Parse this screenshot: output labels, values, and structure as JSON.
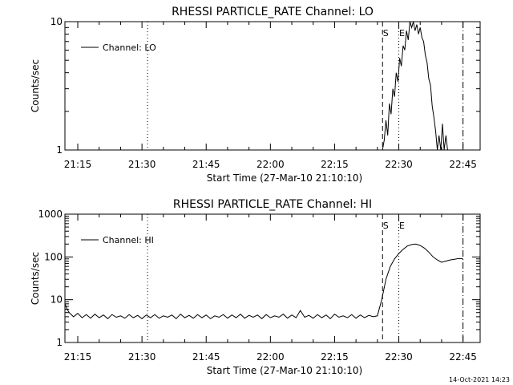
{
  "footer": {
    "timestamp": "14-Oct-2021 14:23"
  },
  "chart_data": [
    {
      "type": "line",
      "title": "RHESSI PARTICLE_RATE Channel: LO",
      "xlabel": "Start Time (27-Mar-10 21:10:10)",
      "ylabel": "Counts/sec",
      "y_scale": "log",
      "ylim": [
        1,
        10
      ],
      "xlim_minutes_after_2110": [
        2,
        51.5
      ],
      "y_ticks": [
        {
          "v": 1,
          "label": "1"
        },
        {
          "v": 10,
          "label": "10"
        }
      ],
      "x_ticks": [
        {
          "m": 5,
          "label": "21:15"
        },
        {
          "m": 20,
          "label": "21:30"
        },
        {
          "m": 35,
          "label": "21:45"
        },
        {
          "m": 50,
          "label": "22:00"
        },
        {
          "m": 65,
          "label": "22:15"
        },
        {
          "m": 80,
          "label": "22:30"
        },
        {
          "m": 95,
          "label": "22:45"
        }
      ],
      "legend": {
        "label": "Channel: LO",
        "position": "top-left"
      },
      "markers": [
        {
          "type": "dotted",
          "m": 21.3,
          "label": ""
        },
        {
          "type": "dashed",
          "m": 76.2,
          "label": "S"
        },
        {
          "type": "dotted",
          "m": 80.0,
          "label": "E"
        },
        {
          "type": "dashdot",
          "m": 95.0,
          "label": ""
        }
      ],
      "series": [
        {
          "name": "Channel: LO",
          "x": [
            76.2,
            76.6,
            77.0,
            77.4,
            77.8,
            78.2,
            78.6,
            79.0,
            79.4,
            79.8,
            80.2,
            80.6,
            81.0,
            81.4,
            81.8,
            82.2,
            82.6,
            83.0,
            83.4,
            83.8,
            84.2,
            84.6,
            85.0,
            85.4,
            85.8,
            86.2,
            86.6,
            87.0,
            87.4,
            87.8,
            88.2,
            88.6,
            89.0,
            89.4,
            89.8,
            90.2,
            90.6,
            91.0,
            91.4
          ],
          "y": [
            1.0,
            1.2,
            1.7,
            1.3,
            2.3,
            1.9,
            3.0,
            2.6,
            4.0,
            3.4,
            5.2,
            4.5,
            6.5,
            6.0,
            8.5,
            7.2,
            11.0,
            9.0,
            10.5,
            8.5,
            9.5,
            8.0,
            9.0,
            7.5,
            7.0,
            5.5,
            4.8,
            3.6,
            3.2,
            2.2,
            1.8,
            1.4,
            1.0,
            1.3,
            1.0,
            1.6,
            1.0,
            1.3,
            1.0
          ]
        }
      ]
    },
    {
      "type": "line",
      "title": "RHESSI PARTICLE_RATE Channel: HI",
      "xlabel": "Start Time (27-Mar-10 21:10:10)",
      "ylabel": "Counts/sec",
      "y_scale": "log",
      "ylim": [
        1,
        1000
      ],
      "xlim_minutes_after_2110": [
        2,
        51.5
      ],
      "y_ticks": [
        {
          "v": 1,
          "label": "1"
        },
        {
          "v": 10,
          "label": "10"
        },
        {
          "v": 100,
          "label": "100"
        },
        {
          "v": 1000,
          "label": "1000"
        }
      ],
      "x_ticks": [
        {
          "m": 5,
          "label": "21:15"
        },
        {
          "m": 20,
          "label": "21:30"
        },
        {
          "m": 35,
          "label": "21:45"
        },
        {
          "m": 50,
          "label": "22:00"
        },
        {
          "m": 65,
          "label": "22:15"
        },
        {
          "m": 80,
          "label": "22:30"
        },
        {
          "m": 95,
          "label": "22:45"
        }
      ],
      "legend": {
        "label": "Channel: HI",
        "position": "top-left"
      },
      "markers": [
        {
          "type": "dotted",
          "m": 21.3,
          "label": ""
        },
        {
          "type": "dashed",
          "m": 76.2,
          "label": "S"
        },
        {
          "type": "dotted",
          "m": 80.0,
          "label": "E"
        },
        {
          "type": "dashdot",
          "m": 95.0,
          "label": ""
        }
      ],
      "series": [
        {
          "name": "Channel: HI",
          "x": [
            2.0,
            2.5,
            3,
            4,
            5,
            6,
            7,
            8,
            9,
            10,
            11,
            12,
            13,
            14,
            15,
            16,
            17,
            18,
            19,
            20,
            21,
            22,
            23,
            24,
            25,
            26,
            27,
            28,
            29,
            30,
            31,
            32,
            33,
            34,
            35,
            36,
            37,
            38,
            39,
            40,
            41,
            42,
            43,
            44,
            45,
            46,
            47,
            48,
            49,
            50,
            51,
            52,
            53,
            54,
            55,
            56,
            57,
            58,
            59,
            60,
            61,
            62,
            63,
            64,
            65,
            66,
            67,
            68,
            69,
            70,
            71,
            72,
            73,
            74,
            75,
            76,
            77,
            78,
            79,
            80,
            81,
            82,
            83,
            84,
            85,
            86,
            87,
            88,
            89,
            90,
            91,
            92,
            93,
            94,
            95
          ],
          "y": [
            8.0,
            6.0,
            5.0,
            4.0,
            4.8,
            3.8,
            4.5,
            3.7,
            4.6,
            3.8,
            4.4,
            3.6,
            4.5,
            3.9,
            4.2,
            3.7,
            4.5,
            3.8,
            4.3,
            3.6,
            4.4,
            3.8,
            4.5,
            3.7,
            4.2,
            3.9,
            4.4,
            3.6,
            4.6,
            3.8,
            4.3,
            3.7,
            4.5,
            3.8,
            4.4,
            3.6,
            4.2,
            3.9,
            4.5,
            3.7,
            4.4,
            3.8,
            4.6,
            3.7,
            4.3,
            3.9,
            4.4,
            3.6,
            4.5,
            3.8,
            4.2,
            3.9,
            4.6,
            3.7,
            4.4,
            3.8,
            5.6,
            3.9,
            4.3,
            3.7,
            4.5,
            3.8,
            4.4,
            3.6,
            4.6,
            3.9,
            4.2,
            3.8,
            4.5,
            3.7,
            4.4,
            3.8,
            4.3,
            4.0,
            4.2,
            10.0,
            30.0,
            60.0,
            90.0,
            120.0,
            150.0,
            180.0,
            195.0,
            200.0,
            185.0,
            160.0,
            130.0,
            100.0,
            85.0,
            75.0,
            80.0,
            85.0,
            88.0,
            92.0,
            90.0
          ]
        }
      ]
    }
  ]
}
